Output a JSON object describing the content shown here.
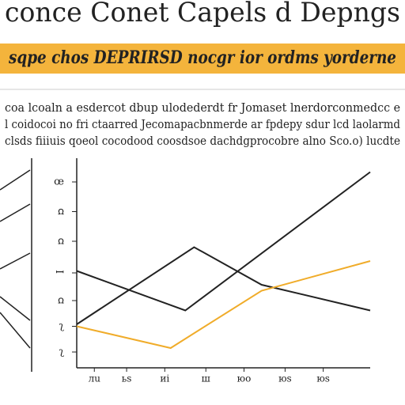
{
  "chart_data": {
    "type": "line",
    "title": "conce Conet Capels d Depngs",
    "subtitle": "sqpe chos DEPRIRSD nocgr ior ordms yorderne",
    "annotations": [
      "coa lcoaln a esdercot dbup ulodederdt fr Jomaset lnerdorconmedcc e",
      "l coidocoi no fri ctaarred Jecomapacbnmerde ar fpdepy sdur lcd laolarmd",
      "clsds fiiiuis qoeol cocodood coosdsoe dachdgprocobre alno Sco.o) lucdte"
    ],
    "xlim": [
      0,
      10
    ],
    "ylim": [
      0,
      10
    ],
    "xticks": [
      {
        "value": 0.6,
        "label": "лu"
      },
      {
        "value": 1.7,
        "label": "ьs"
      },
      {
        "value": 3,
        "label": "иi"
      },
      {
        "value": 4.4,
        "label": "ш"
      },
      {
        "value": 5.7,
        "label": "юo"
      },
      {
        "value": 7.1,
        "label": "юs"
      },
      {
        "value": 8.4,
        "label": "юs"
      }
    ],
    "yticks": [
      {
        "value": 9.4,
        "label": "œ"
      },
      {
        "value": 7.9,
        "label": "ꭥ"
      },
      {
        "value": 6.4,
        "label": "ꭥ"
      },
      {
        "value": 4.8,
        "label": "ꟷ"
      },
      {
        "value": 3.4,
        "label": "ꭥ"
      },
      {
        "value": 2.1,
        "label": "ʅ"
      },
      {
        "value": 0.8,
        "label": "ʅ"
      }
    ],
    "series": [
      {
        "color": "#222222",
        "x": [
          0,
          3.7,
          10
        ],
        "values": [
          4.9,
          2.9,
          9.9
        ]
      },
      {
        "color": "#222222",
        "x": [
          0,
          4,
          6.3,
          10
        ],
        "values": [
          2.2,
          6.1,
          4.2,
          2.9
        ]
      },
      {
        "color": "#f0ac2a",
        "x": [
          0,
          3.2,
          6.3,
          10
        ],
        "values": [
          2.1,
          1.0,
          3.9,
          5.4
        ]
      }
    ]
  }
}
